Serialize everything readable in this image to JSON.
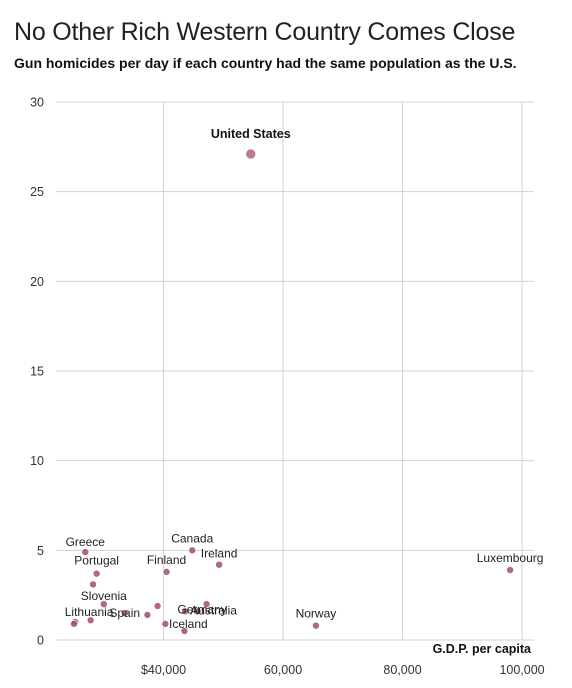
{
  "title": "No Other Rich Western Country Comes Close",
  "subtitle": "Gun homicides per day if each country had the same population as the U.S.",
  "colors": {
    "dot": "#b0647f",
    "dot_dark": "#a04d6b",
    "grid": "#d2d2d2"
  },
  "chart_data": {
    "type": "scatter",
    "title": "No Other Rich Western Country Comes Close",
    "subtitle": "Gun homicides per day if each country had the same population as the U.S.",
    "xlabel": "G.D.P. per capita",
    "ylabel": "",
    "xlim": [
      22000,
      102000
    ],
    "ylim": [
      0,
      30
    ],
    "x_ticks": [
      40000,
      60000,
      80000,
      100000
    ],
    "x_tick_labels": [
      "$40,000",
      "60,000",
      "80,000",
      "100,000"
    ],
    "y_ticks": [
      0,
      5,
      10,
      15,
      20,
      25,
      30
    ],
    "y_tick_labels": [
      "0",
      "5",
      "10",
      "15",
      "20",
      "25",
      "30"
    ],
    "grid": true,
    "points": [
      {
        "label": "United States",
        "x": 54600,
        "y": 27.1,
        "size": "large",
        "bold": true
      },
      {
        "label": "Luxembourg",
        "x": 98000,
        "y": 3.9
      },
      {
        "label": "Norway",
        "x": 65500,
        "y": 0.8
      },
      {
        "label": "Canada",
        "x": 44800,
        "y": 5.0
      },
      {
        "label": "Ireland",
        "x": 49300,
        "y": 4.2
      },
      {
        "label": "Finland",
        "x": 40500,
        "y": 3.8
      },
      {
        "label": "Greece",
        "x": 26900,
        "y": 4.9
      },
      {
        "label": "Portugal",
        "x": 28800,
        "y": 3.7
      },
      {
        "label": "",
        "x": 28200,
        "y": 3.1
      },
      {
        "label": "Slovenia",
        "x": 30000,
        "y": 2.0
      },
      {
        "label": "Spain",
        "x": 33500,
        "y": 1.5
      },
      {
        "label": "Lithuania",
        "x": 25200,
        "y": 1.0
      },
      {
        "label": "",
        "x": 25000,
        "y": 0.9
      },
      {
        "label": "",
        "x": 27800,
        "y": 1.1
      },
      {
        "label": "",
        "x": 37300,
        "y": 1.4
      },
      {
        "label": "",
        "x": 39000,
        "y": 1.9
      },
      {
        "label": "Germany",
        "x": 43600,
        "y": 1.6
      },
      {
        "label": "Australia",
        "x": 45700,
        "y": 1.6
      },
      {
        "label": "",
        "x": 47200,
        "y": 2.0
      },
      {
        "label": "Iceland",
        "x": 40300,
        "y": 0.9
      },
      {
        "label": "",
        "x": 43500,
        "y": 0.5
      }
    ]
  }
}
